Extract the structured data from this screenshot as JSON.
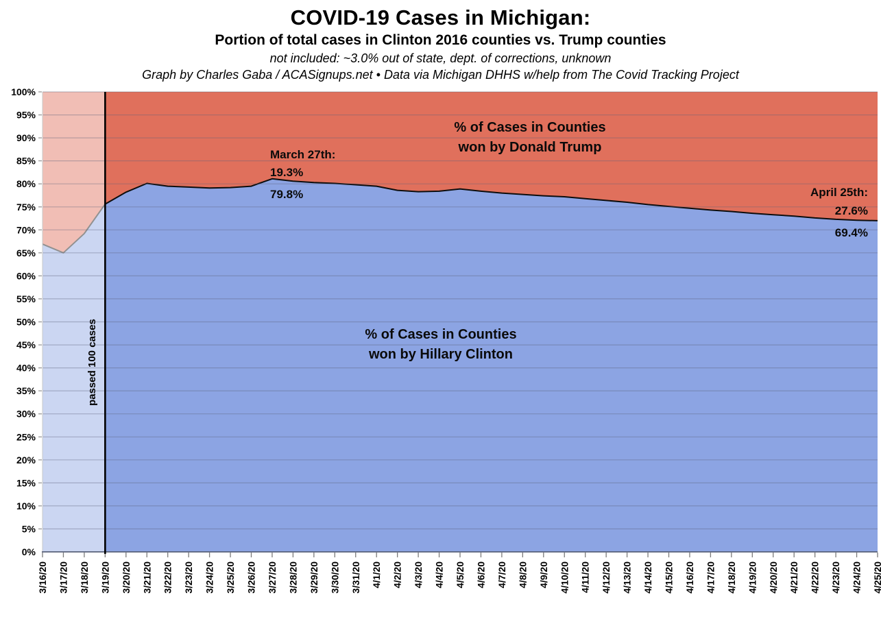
{
  "header": {
    "title": "COVID-19 Cases in Michigan:",
    "subtitle": "Portion of total cases in Clinton 2016 counties vs. Trump counties",
    "note": "not included: ~3.0% out of state, dept. of corrections, unknown",
    "credit": "Graph by Charles Gaba / ACASignups.net  •  Data via Michigan DHHS w/help from The Covid Tracking Project"
  },
  "chart_data": {
    "type": "area",
    "stacked": true,
    "title": "COVID-19 Cases in Michigan: portion of total cases in Clinton 2016 counties vs. Trump counties",
    "x": [
      "3/16/20",
      "3/17/20",
      "3/18/20",
      "3/19/20",
      "3/20/20",
      "3/21/20",
      "3/22/20",
      "3/23/20",
      "3/24/20",
      "3/25/20",
      "3/26/20",
      "3/27/20",
      "3/28/20",
      "3/29/20",
      "3/30/20",
      "3/31/20",
      "4/1/20",
      "4/2/20",
      "4/3/20",
      "4/4/20",
      "4/5/20",
      "4/6/20",
      "4/7/20",
      "4/8/20",
      "4/9/20",
      "4/10/20",
      "4/11/20",
      "4/12/20",
      "4/13/20",
      "4/14/20",
      "4/15/20",
      "4/16/20",
      "4/17/20",
      "4/18/20",
      "4/19/20",
      "4/20/20",
      "4/21/20",
      "4/22/20",
      "4/23/20",
      "4/24/20",
      "4/25/20"
    ],
    "series": [
      {
        "name": "% of Cases in Counties won by Hillary Clinton",
        "color": "#8CA4E3",
        "values": [
          66.9,
          65.0,
          69.2,
          75.6,
          78.2,
          80.1,
          79.5,
          79.3,
          79.1,
          79.2,
          79.5,
          81.1,
          80.6,
          80.3,
          80.1,
          79.8,
          79.5,
          78.6,
          78.3,
          78.4,
          78.9,
          78.4,
          78.0,
          77.7,
          77.4,
          77.2,
          76.8,
          76.4,
          76.0,
          75.5,
          75.1,
          74.7,
          74.3,
          74.0,
          73.6,
          73.3,
          73.0,
          72.6,
          72.3,
          72.1,
          72.0
        ]
      },
      {
        "name": "% of Cases in Counties won by Donald Trump",
        "color": "#E0705C",
        "values": [
          33.1,
          35.0,
          30.8,
          24.4,
          21.8,
          19.9,
          20.5,
          20.7,
          20.9,
          20.8,
          20.5,
          18.9,
          19.4,
          19.7,
          19.9,
          20.2,
          20.5,
          21.4,
          21.7,
          21.6,
          21.1,
          21.6,
          22.0,
          22.3,
          22.6,
          22.8,
          23.2,
          23.6,
          24.0,
          24.5,
          24.9,
          25.3,
          25.7,
          26.0,
          26.4,
          26.7,
          27.0,
          27.4,
          27.7,
          27.9,
          28.0
        ]
      }
    ],
    "ylim": [
      0,
      100
    ],
    "ytick_step": 5,
    "y_tick_suffix": "%",
    "grid": true,
    "legend_position": "none",
    "boundary_line_color": "#0d0d0d",
    "event_line": {
      "x": "3/19/20",
      "color": "#000000"
    },
    "faded_region": {
      "from": "3/16/20",
      "to": "3/19/20",
      "overlay_color": "#ffffff",
      "overlay_opacity": 0.55
    },
    "annotations": {
      "event_label": "passed 100 cases",
      "trump_area": {
        "line1": "% of Cases in Counties",
        "line2": "won by Donald Trump"
      },
      "clinton_area": {
        "line1": "% of Cases in Counties",
        "line2": "won by Hillary Clinton"
      },
      "march27": {
        "title": "March 27th:",
        "trump_pct": "19.3%",
        "clinton_pct": "79.8%"
      },
      "april25": {
        "title": "April 25th:",
        "trump_pct": "27.6%",
        "clinton_pct": "69.4%"
      }
    }
  }
}
